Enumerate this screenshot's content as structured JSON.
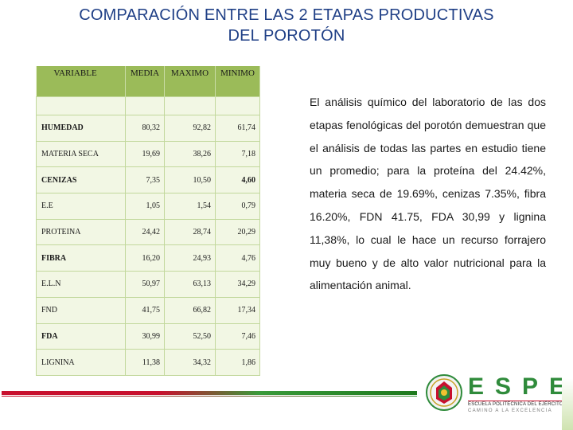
{
  "slide": {
    "title_line1": "COMPARACIÓN  ENTRE LAS 2 ETAPAS PRODUCTIVAS",
    "title_line2": "DEL POROTÓN"
  },
  "table": {
    "headers": [
      "VARIABLE",
      "MEDIA",
      "MAXIMO",
      "MINIMO"
    ],
    "rows": [
      {
        "variable": "HUMEDAD",
        "media": "80,32",
        "maximo": "92,82",
        "minimo": "61,74"
      },
      {
        "variable": "MATERIA SECA",
        "media": "19,69",
        "maximo": "38,26",
        "minimo": "7,18"
      },
      {
        "variable": "CENIZAS",
        "media": "7,35",
        "maximo": "10,50",
        "minimo": "4,60"
      },
      {
        "variable": "E.E",
        "media": "1,05",
        "maximo": "1,54",
        "minimo": "0,79"
      },
      {
        "variable": "PROTEINA",
        "media": "24,42",
        "maximo": "28,74",
        "minimo": "20,29"
      },
      {
        "variable": "FIBRA",
        "media": "16,20",
        "maximo": "24,93",
        "minimo": "4,76"
      },
      {
        "variable": "E.L.N",
        "media": "50,97",
        "maximo": "63,13",
        "minimo": "34,29"
      },
      {
        "variable": "FND",
        "media": "41,75",
        "maximo": "66,82",
        "minimo": "17,34"
      },
      {
        "variable": "FDA",
        "media": "30,99",
        "maximo": "52,50",
        "minimo": "7,46"
      },
      {
        "variable": "LIGNINA",
        "media": "11,38",
        "maximo": "34,32",
        "minimo": "1,86"
      }
    ]
  },
  "body": {
    "paragraph": "El análisis químico del laboratorio de las dos etapas fenológicas del porotón demuestran que el análisis de todas las partes en estudio tiene un promedio; para la proteína del 24.42%, materia seca de 19.69%, cenizas 7.35%, fibra 16.20%, FDN 41.75, FDA 30,99 y lignina 11,38%, lo cual le hace un recurso forrajero muy bueno y de alto valor nutricional para la alimentación animal."
  },
  "logo": {
    "word": "ESPE",
    "subtitle": "ESCUELA POLITÉCNICA DEL EJÉRCITO",
    "motto": "CAMINO A LA EXCELENCIA",
    "icon": "espe-seal-icon"
  },
  "colors": {
    "title": "#1f3f86",
    "table_header": "#9bbb59",
    "table_body": "#f2f7e4",
    "footer_red": "#c8102e",
    "footer_green": "#2f8b3b"
  }
}
